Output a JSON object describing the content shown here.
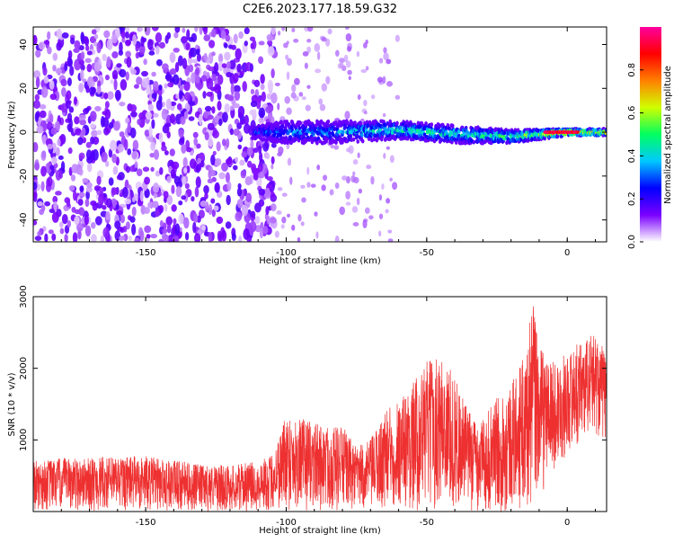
{
  "title": "C2E6.2023.177.18.59.G32",
  "chart_data": [
    {
      "type": "heatmap",
      "xlabel": "Height of straight line (km)",
      "ylabel": "Frequency (Hz)",
      "xlim": [
        -190,
        14
      ],
      "ylim": [
        -50,
        48
      ],
      "x_ticks": [
        -150,
        -100,
        -50,
        0
      ],
      "y_ticks": [
        -40,
        -20,
        0,
        20,
        40
      ],
      "colorbar": {
        "label": "Normalized spectral amplitude",
        "range": [
          0,
          1
        ],
        "ticks": [
          "0.0",
          "0.2",
          "0.4",
          "0.6",
          "0.8"
        ],
        "colormap": [
          "#ffffff",
          "#7a00ff",
          "#0000ff",
          "#00c8ff",
          "#00ff60",
          "#d0ff00",
          "#ff8000",
          "#ff0000",
          "#ff00a0"
        ]
      },
      "features": {
        "scatter_region_x": [
          -190,
          -108
        ],
        "scatter_region_amplitude": 0.12,
        "ridge": {
          "x": [
            -112,
            -100,
            -80,
            -60,
            -40,
            -20,
            0,
            14
          ],
          "frequency": [
            0,
            0,
            0,
            1,
            -1,
            -2,
            0,
            0
          ],
          "halfwidth_hz": [
            3,
            5,
            5,
            4,
            4,
            3,
            1.5,
            1.5
          ],
          "peak_amplitude": [
            0.3,
            0.35,
            0.4,
            0.5,
            0.5,
            0.55,
            0.9,
            0.7
          ]
        }
      }
    },
    {
      "type": "line",
      "xlabel": "Height of straight line (km)",
      "ylabel": "SNR (10 * v/v)",
      "xlim": [
        -190,
        14
      ],
      "ylim": [
        0,
        3000
      ],
      "x_ticks": [
        -150,
        -100,
        -50,
        0
      ],
      "y_ticks": [
        1000,
        2000,
        3000
      ],
      "series_color": "#ee3030",
      "envelope": {
        "x": [
          -190,
          -180,
          -170,
          -160,
          -150,
          -140,
          -130,
          -120,
          -110,
          -105,
          -100,
          -95,
          -90,
          -85,
          -80,
          -75,
          -70,
          -65,
          -60,
          -55,
          -50,
          -45,
          -40,
          -35,
          -30,
          -25,
          -20,
          -15,
          -12,
          -10,
          -5,
          0,
          5,
          10,
          14
        ],
        "low": [
          0,
          0,
          0,
          0,
          0,
          0,
          0,
          0,
          0,
          0,
          0,
          0,
          0,
          0,
          0,
          0,
          0,
          0,
          0,
          0,
          0,
          0,
          0,
          0,
          0,
          0,
          0,
          0,
          0,
          200,
          500,
          800,
          1000,
          1100,
          900
        ],
        "high": [
          700,
          750,
          750,
          780,
          780,
          720,
          650,
          650,
          700,
          800,
          1400,
          1300,
          1250,
          1200,
          1200,
          900,
          1000,
          1400,
          1600,
          1800,
          2100,
          2200,
          1900,
          1400,
          1300,
          1600,
          1800,
          2200,
          3000,
          2300,
          2100,
          2200,
          2400,
          2500,
          2200
        ]
      }
    }
  ]
}
